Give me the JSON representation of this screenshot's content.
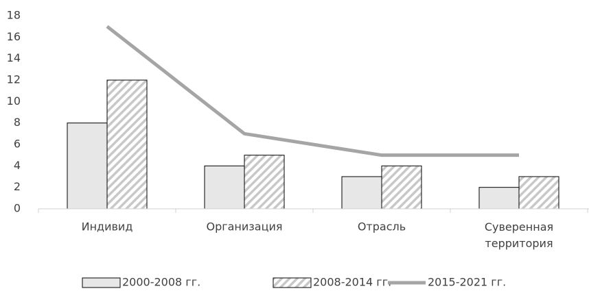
{
  "chart_data": {
    "type": "bar",
    "categories": [
      "Индивид",
      "Организация",
      "Отрасль",
      "Суверенная территория"
    ],
    "series": [
      {
        "name": "2000-2008 гг.",
        "type": "bar",
        "color": "#e7e7e7",
        "pattern": "solid",
        "values": [
          8,
          4,
          3,
          2
        ]
      },
      {
        "name": "2008-2014 гг.",
        "type": "bar",
        "color": "#c8c8c8",
        "pattern": "hatch",
        "values": [
          12,
          5,
          4,
          3
        ]
      },
      {
        "name": "2015-2021 гг.",
        "type": "line",
        "color": "#a5a5a5",
        "values": [
          17,
          7,
          5,
          5
        ]
      }
    ],
    "ylim": [
      0,
      18
    ],
    "yticks": [
      0,
      2,
      4,
      6,
      8,
      10,
      12,
      14,
      16,
      18
    ],
    "grid": false,
    "legend": "bottom"
  }
}
